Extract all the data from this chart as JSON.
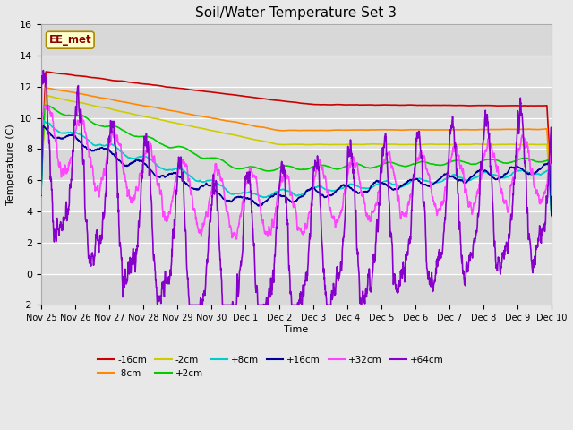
{
  "title": "Soil/Water Temperature Set 3",
  "xlabel": "Time",
  "ylabel": "Temperature (C)",
  "ylim": [
    -2,
    16
  ],
  "yticks": [
    -2,
    0,
    2,
    4,
    6,
    8,
    10,
    12,
    14,
    16
  ],
  "xtick_labels": [
    "Nov 25",
    "Nov 26",
    "Nov 27",
    "Nov 28",
    "Nov 29",
    "Nov 30",
    "Dec 1",
    "Dec 2",
    "Dec 3",
    "Dec 4",
    "Dec 5",
    "Dec 6",
    "Dec 7",
    "Dec 8",
    "Dec 9",
    "Dec 10"
  ],
  "legend_label": "EE_met",
  "fig_bg": "#e8e8e8",
  "plot_bg": "#e0e0e0",
  "band_color": "#cccccc",
  "series": {
    "-16cm": {
      "color": "#cc0000",
      "lw": 1.2
    },
    "-8cm": {
      "color": "#ff8800",
      "lw": 1.2
    },
    "-2cm": {
      "color": "#cccc00",
      "lw": 1.2
    },
    "+2cm": {
      "color": "#00cc00",
      "lw": 1.2
    },
    "+8cm": {
      "color": "#00cccc",
      "lw": 1.2
    },
    "+16cm": {
      "color": "#000099",
      "lw": 1.2
    },
    "+32cm": {
      "color": "#ff44ff",
      "lw": 1.2
    },
    "+64cm": {
      "color": "#8800cc",
      "lw": 1.2
    }
  }
}
